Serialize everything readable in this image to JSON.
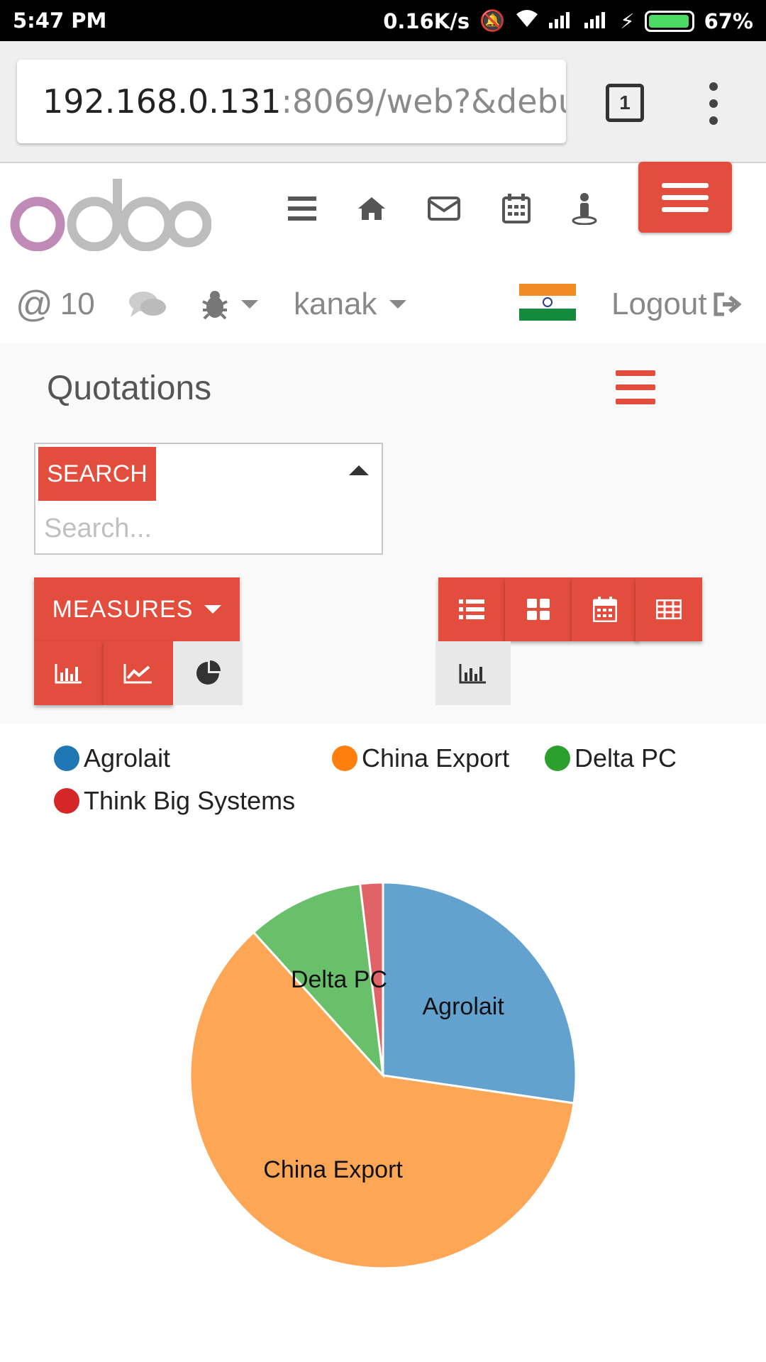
{
  "status_bar": {
    "time": "5:47 PM",
    "speed": "0.16K/s",
    "battery_pct": "67%"
  },
  "browser": {
    "url_host": "192.168.0.131",
    "url_rest": ":8069/web?&debug",
    "tab_count": "1"
  },
  "header": {
    "logo_text": "odoo",
    "mention_count": "10",
    "user": "kanak",
    "logout_label": "Logout"
  },
  "main": {
    "title": "Quotations",
    "search_label": "SEARCH",
    "search_placeholder": "Search...",
    "measures_label": "MEASURES"
  },
  "colors": {
    "accent": "#e24d3d",
    "agrolait": "#1f77b4",
    "china_export": "#ff7f0e",
    "delta_pc": "#2ca02c",
    "think_big": "#d62728"
  },
  "chart_data": {
    "type": "pie",
    "legend_placement": "top",
    "series": [
      {
        "name": "Agrolait",
        "value": 27.3,
        "color": "#63a1cf",
        "legend_color": "#1f77b4",
        "label": "Agrolait"
      },
      {
        "name": "China Export",
        "value": 61.0,
        "color": "#fda756",
        "legend_color": "#ff7f0e",
        "label": "China Export"
      },
      {
        "name": "Delta PC",
        "value": 9.8,
        "color": "#6abf6a",
        "legend_color": "#2ca02c",
        "label": "Delta PC"
      },
      {
        "name": "Think Big Systems",
        "value": 1.9,
        "color": "#e06467",
        "legend_color": "#d62728",
        "label": ""
      }
    ]
  }
}
